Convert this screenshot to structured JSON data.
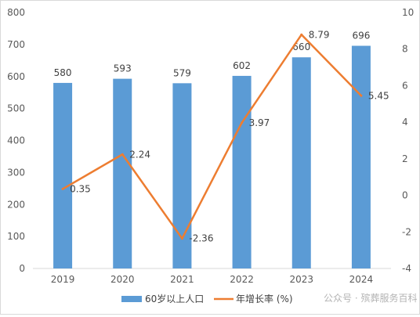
{
  "chart_data": {
    "type": "bar",
    "categories": [
      "2019",
      "2020",
      "2021",
      "2022",
      "2023",
      "2024"
    ],
    "series": [
      {
        "name": "60岁以上人口",
        "type": "bar",
        "axis": "left",
        "values": [
          580,
          593,
          579,
          602,
          660,
          696
        ],
        "color": "#5b9bd5"
      },
      {
        "name": "年增长率 (%)",
        "type": "line",
        "axis": "right",
        "values": [
          0.35,
          2.24,
          -2.36,
          3.97,
          8.79,
          5.45
        ],
        "color": "#ed7d31"
      }
    ],
    "bar_labels": [
      "580",
      "593",
      "579",
      "602",
      "660",
      "696"
    ],
    "line_labels": [
      "0.35",
      "2.24",
      "-2.36",
      "3.97",
      "8.79",
      "5.45"
    ],
    "y_left": {
      "min": 0,
      "max": 800,
      "ticks": [
        "0",
        "100",
        "200",
        "300",
        "400",
        "500",
        "600",
        "700",
        "800"
      ]
    },
    "y_right": {
      "min": -4,
      "max": 10,
      "ticks": [
        "-4",
        "-2",
        "0",
        "2",
        "4",
        "6",
        "8",
        "10"
      ]
    },
    "grid": false,
    "legend_position": "bottom"
  },
  "watermark": "公众号 · 殡葬服务百科"
}
